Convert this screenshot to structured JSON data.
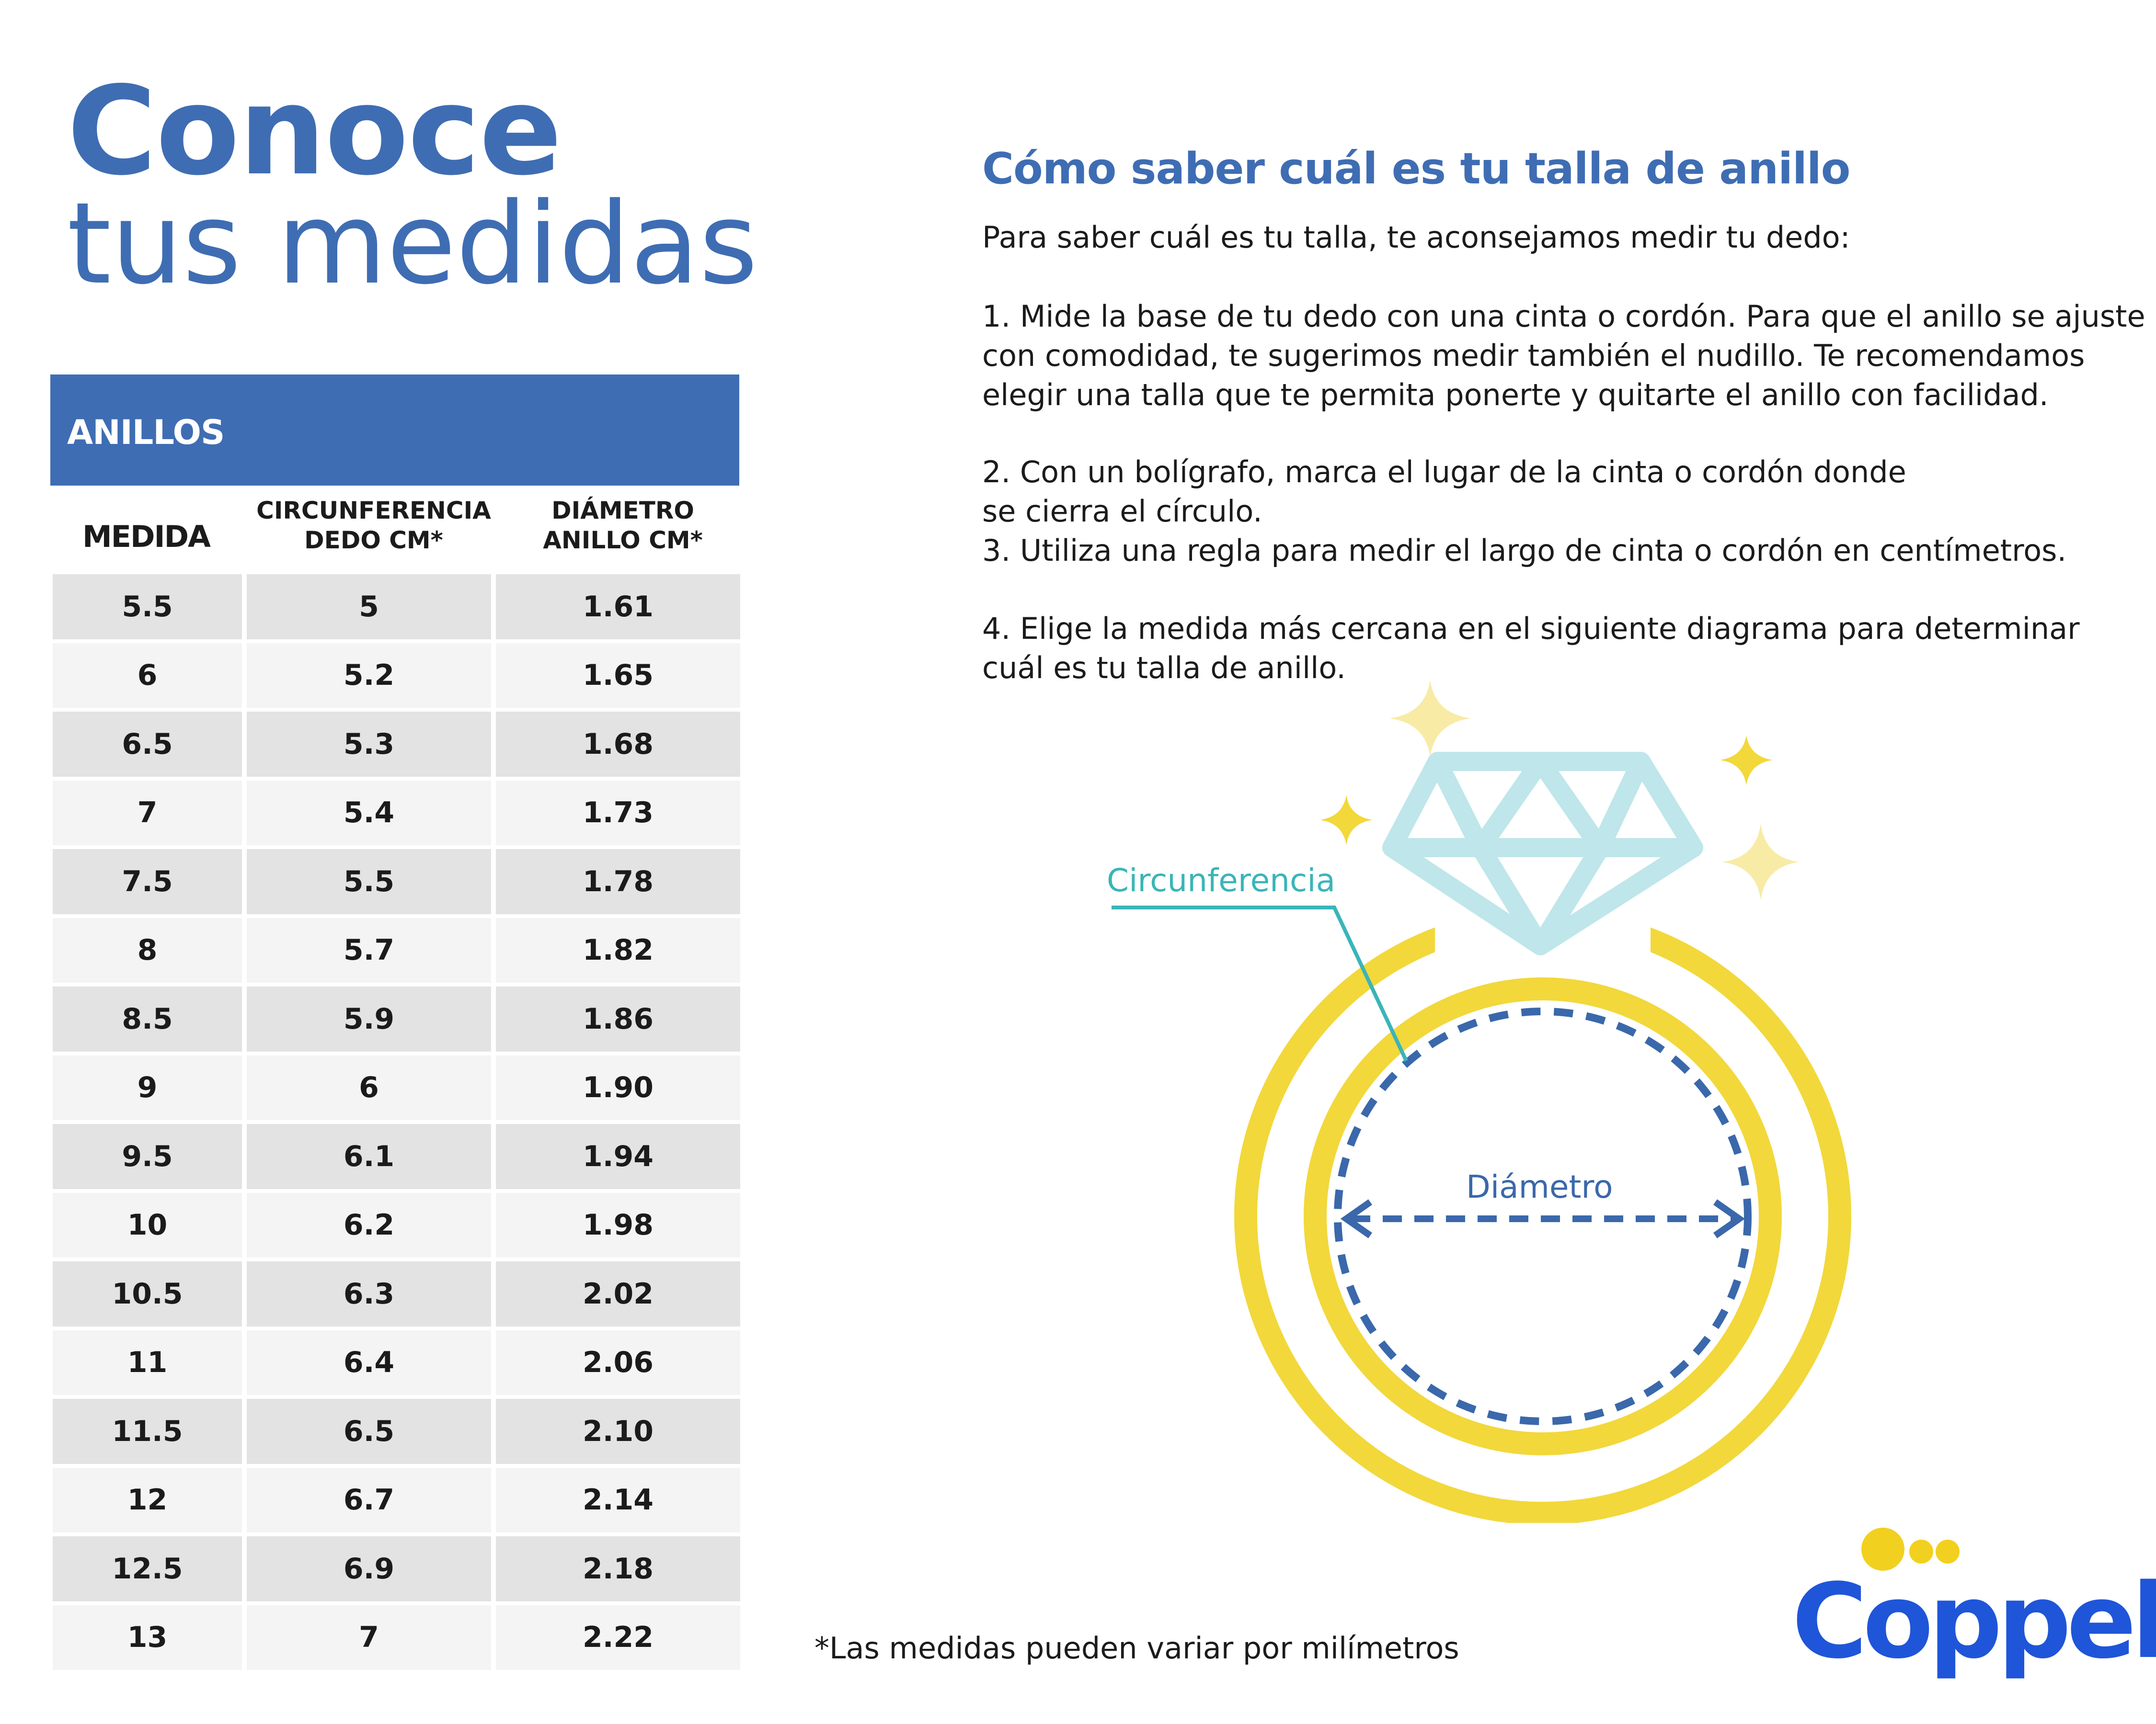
{
  "title": {
    "line1": "Conoce",
    "line2": "tus medidas"
  },
  "table": {
    "header": "ANILLOS",
    "columns": {
      "medida": "MEDIDA",
      "circ_line1": "CIRCUNFERENCIA",
      "circ_line2": "DEDO CM*",
      "diam_line1": "DIÁMETRO",
      "diam_line2": "ANILLO CM*"
    },
    "rows": [
      [
        "5.5",
        "5",
        "1.61"
      ],
      [
        "6",
        "5.2",
        "1.65"
      ],
      [
        "6.5",
        "5.3",
        "1.68"
      ],
      [
        "7",
        "5.4",
        "1.73"
      ],
      [
        "7.5",
        "5.5",
        "1.78"
      ],
      [
        "8",
        "5.7",
        "1.82"
      ],
      [
        "8.5",
        "5.9",
        "1.86"
      ],
      [
        "9",
        "6",
        "1.90"
      ],
      [
        "9.5",
        "6.1",
        "1.94"
      ],
      [
        "10",
        "6.2",
        "1.98"
      ],
      [
        "10.5",
        "6.3",
        "2.02"
      ],
      [
        "11",
        "6.4",
        "2.06"
      ],
      [
        "11.5",
        "6.5",
        "2.10"
      ],
      [
        "12",
        "6.7",
        "2.14"
      ],
      [
        "12.5",
        "6.9",
        "2.18"
      ],
      [
        "13",
        "7",
        "2.22"
      ]
    ]
  },
  "instructions": {
    "title": "Cómo saber cuál es tu talla de anillo",
    "intro": "Para saber cuál es tu talla, te aconsejamos medir tu dedo:",
    "step1": [
      "1. Mide la base de tu dedo con una cinta o cordón. Para que el anillo se ajuste",
      "con comodidad, te sugerimos medir también el nudillo. Te recomendamos",
      "elegir una talla que te permita ponerte y quitarte el anillo con facilidad."
    ],
    "step2_3": [
      "2. Con un bolígrafo, marca el lugar de la cinta o cordón donde",
      "se cierra el círculo.",
      "3. Utiliza una regla para medir el largo de cinta o cordón en centímetros."
    ],
    "step4": [
      "4. Elige la medida más cercana en el siguiente diagrama para determinar",
      "cuál es tu talla de anillo."
    ]
  },
  "diagram": {
    "circumference_label": "Circunferencia",
    "diameter_label": "Diámetro",
    "icons": [
      "diamond-icon",
      "sparkle-icon",
      "ring-icon"
    ],
    "colors": {
      "ring": "#f2d83b",
      "diamond": "#bfe6ea",
      "circumference": "#3ab5b8",
      "diameter": "#3a68ab",
      "sparkle": "#f5e27a"
    }
  },
  "footnote": "*Las medidas pueden variar por milímetros",
  "logo": {
    "text": "Coppel",
    "color": "#1f55d8",
    "dots_color": "#f2d020"
  },
  "colors": {
    "brand_blue": "#3f6db3",
    "row_dark": "#e3e3e3",
    "row_light": "#f4f4f4"
  }
}
